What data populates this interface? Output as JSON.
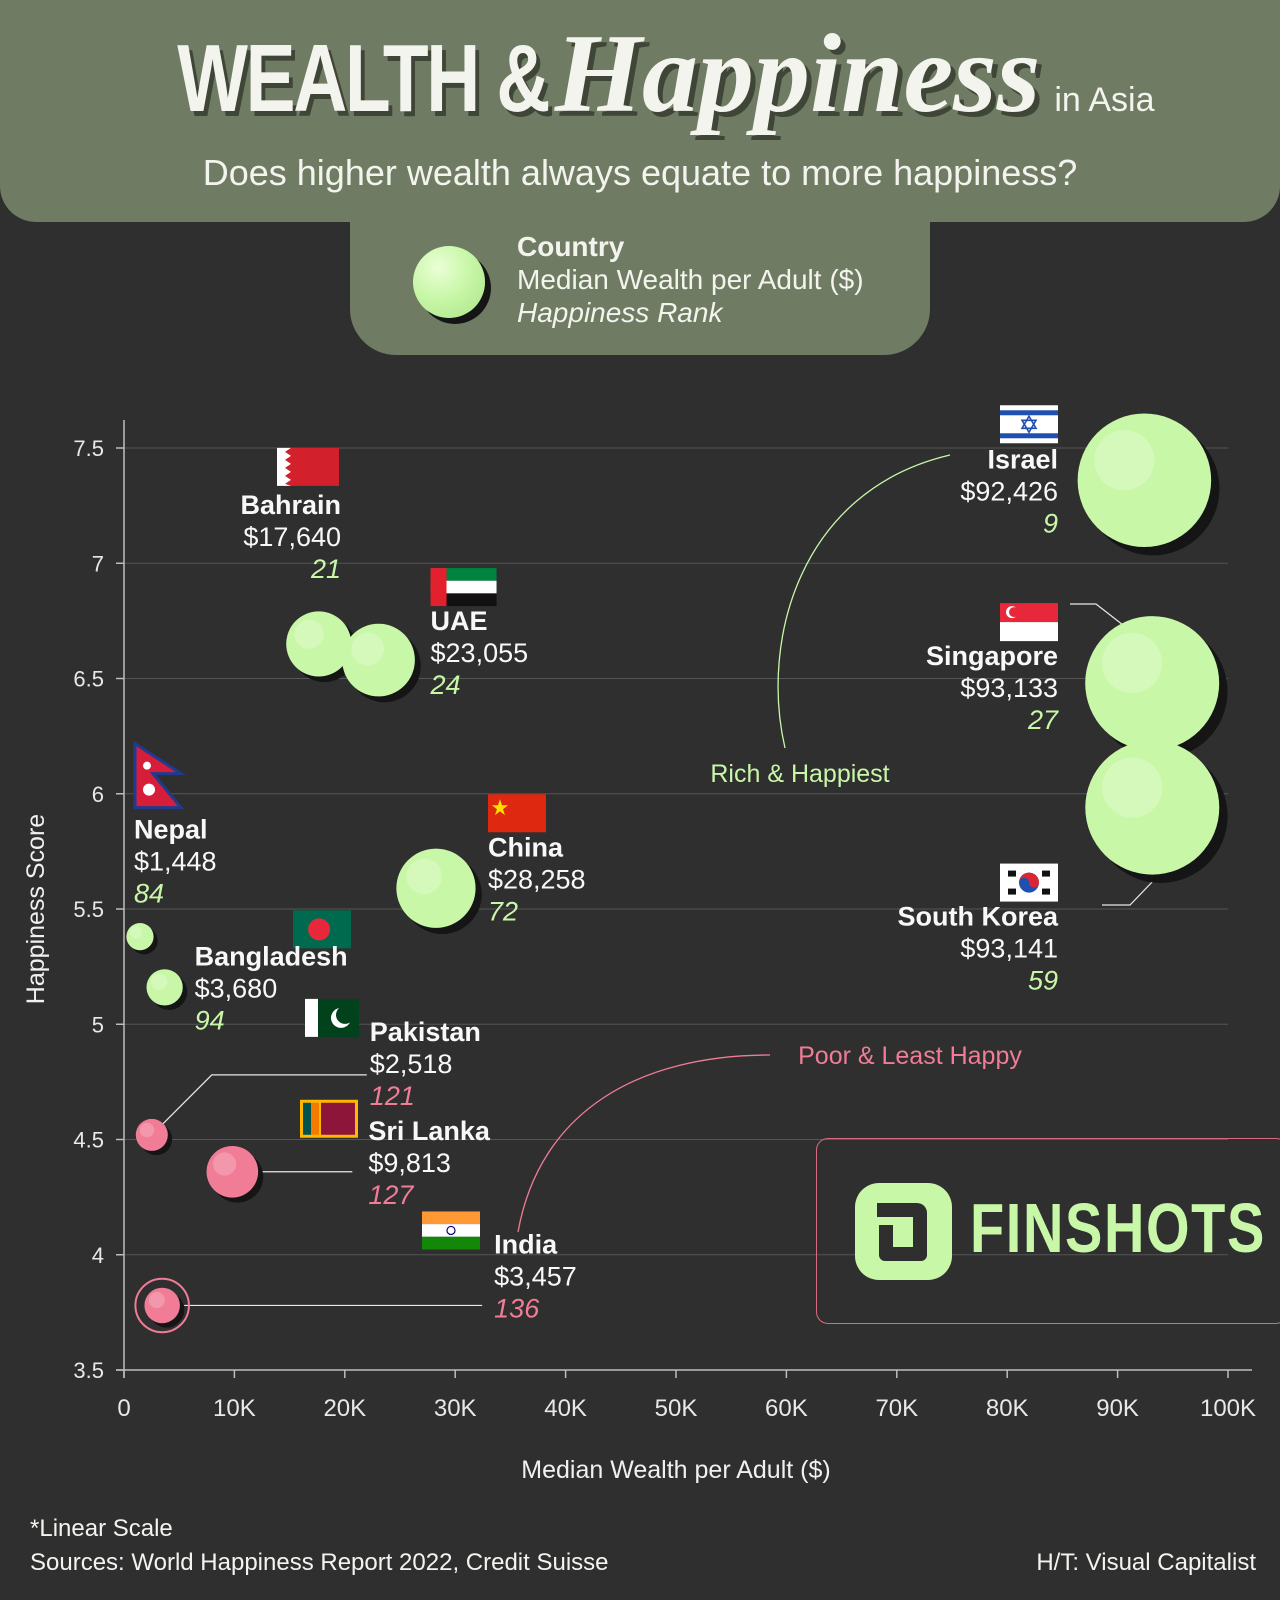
{
  "header": {
    "title_part1": "WEALTH &",
    "title_part2": "Happiness",
    "title_suffix": "in Asia",
    "subtitle": "Does higher wealth always equate to more happiness?"
  },
  "legend": {
    "line1": "Country",
    "line2": "Median Wealth per Adult ($)",
    "line3": "Happiness Rank"
  },
  "colors": {
    "background": "#2f2f30",
    "header": "#6f7c63",
    "rich_bubble": "#c9f7a8",
    "poor_bubble": "#f07c95",
    "rank_green": "#c9f7a8",
    "rank_pink": "#f07c95"
  },
  "chart_data": {
    "type": "scatter",
    "xlabel": "Median Wealth per Adult ($)",
    "ylabel": "Happiness Score",
    "xlim": [
      0,
      100000
    ],
    "ylim": [
      3.5,
      7.5
    ],
    "xticks": [
      0,
      10000,
      20000,
      30000,
      40000,
      50000,
      60000,
      70000,
      80000,
      90000,
      100000
    ],
    "xtick_labels": [
      "0",
      "10K",
      "20K",
      "30K",
      "40K",
      "50K",
      "60K",
      "70K",
      "80K",
      "90K",
      "100K"
    ],
    "yticks": [
      3.5,
      4,
      4.5,
      5,
      5.5,
      6,
      6.5,
      7,
      7.5
    ],
    "ytick_labels": [
      "3.5",
      "4",
      "4.5",
      "5",
      "5.5",
      "6",
      "6.5",
      "7",
      "7.5"
    ],
    "grid": true,
    "bubble_size": "Median Wealth per Adult ($)",
    "points": [
      {
        "country": "Israel",
        "wealth_label": "$92,426",
        "rank": "9",
        "x": 92426,
        "y": 7.36,
        "group": "rich"
      },
      {
        "country": "Singapore",
        "wealth_label": "$93,133",
        "rank": "27",
        "x": 93133,
        "y": 6.48,
        "group": "rich"
      },
      {
        "country": "South Korea",
        "wealth_label": "$93,141",
        "rank": "59",
        "x": 93141,
        "y": 5.94,
        "group": "rich"
      },
      {
        "country": "Bahrain",
        "wealth_label": "$17,640",
        "rank": "21",
        "x": 17640,
        "y": 6.65,
        "group": "rich"
      },
      {
        "country": "UAE",
        "wealth_label": "$23,055",
        "rank": "24",
        "x": 23055,
        "y": 6.58,
        "group": "rich"
      },
      {
        "country": "China",
        "wealth_label": "$28,258",
        "rank": "72",
        "x": 28258,
        "y": 5.59,
        "group": "rich"
      },
      {
        "country": "Nepal",
        "wealth_label": "$1,448",
        "rank": "84",
        "x": 1448,
        "y": 5.38,
        "group": "rich"
      },
      {
        "country": "Bangladesh",
        "wealth_label": "$3,680",
        "rank": "94",
        "x": 3680,
        "y": 5.16,
        "group": "rich"
      },
      {
        "country": "Pakistan",
        "wealth_label": "$2,518",
        "rank": "121",
        "x": 2518,
        "y": 4.52,
        "group": "poor"
      },
      {
        "country": "Sri Lanka",
        "wealth_label": "$9,813",
        "rank": "127",
        "x": 9813,
        "y": 4.36,
        "group": "poor"
      },
      {
        "country": "India",
        "wealth_label": "$3,457",
        "rank": "136",
        "x": 3457,
        "y": 3.78,
        "group": "poor"
      }
    ],
    "annotations": [
      {
        "text": "Rich & Happiest",
        "group": "rich"
      },
      {
        "text": "Poor & Least Happy",
        "group": "poor"
      }
    ]
  },
  "footer": {
    "note": "*Linear Scale",
    "sources": "Sources: World Happiness Report 2022, Credit Suisse",
    "credit": "H/T: Visual Capitalist"
  },
  "logo": {
    "text": "FINSHOTS"
  }
}
